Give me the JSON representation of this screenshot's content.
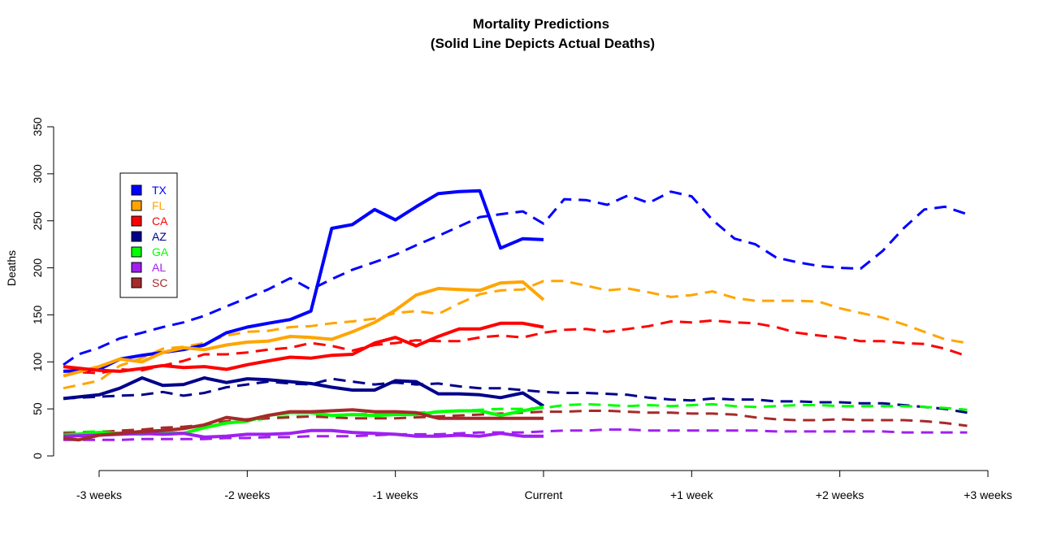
{
  "chart_data": {
    "type": "line",
    "title": "Mortality Predictions",
    "subtitle": "(Solid Line Depicts Actual Deaths)",
    "xlabel": "",
    "ylabel": "Deaths",
    "ylim": [
      0,
      350
    ],
    "yticks": [
      0,
      50,
      100,
      150,
      200,
      250,
      300,
      350
    ],
    "xlim": [
      -3.3,
      3.05
    ],
    "x_ticks": [
      {
        "value": -3,
        "label": "-3 weeks"
      },
      {
        "value": -2,
        "label": "-2 weeks"
      },
      {
        "value": -1,
        "label": "-1 weeks"
      },
      {
        "value": 0,
        "label": "Current"
      },
      {
        "value": 1,
        "label": "+1 week"
      },
      {
        "value": 2,
        "label": "+2 weeks"
      },
      {
        "value": 3,
        "label": "+3 weeks"
      }
    ],
    "grid": false,
    "legend_position": "top-left",
    "line_styles": {
      "actual": "solid",
      "predicted": "dashed"
    },
    "series": [
      {
        "name": "TX",
        "color": "#0000FF",
        "actual": {
          "x": [
            -3.3,
            -3.0,
            -2.86,
            -2.71,
            -2.57,
            -2.43,
            -2.29,
            -2.14,
            -2.0,
            -1.86,
            -1.71,
            -1.57,
            -1.43,
            -1.29,
            -1.14,
            -1.0,
            -0.86,
            -0.71,
            -0.57,
            -0.43,
            -0.29,
            -0.14,
            0
          ],
          "y": [
            90,
            92,
            103,
            107,
            110,
            113,
            118,
            131,
            137,
            141,
            145,
            154,
            242,
            246,
            262,
            251,
            265,
            279,
            281,
            282,
            221,
            231,
            230
          ]
        },
        "predicted": {
          "x": [
            -3.3,
            -3.14,
            -3.0,
            -2.86,
            -2.71,
            -2.57,
            -2.43,
            -2.29,
            -2.14,
            -2.0,
            -1.86,
            -1.71,
            -1.57,
            -1.43,
            -1.29,
            -1.14,
            -1.0,
            -0.86,
            -0.71,
            -0.57,
            -0.43,
            -0.29,
            -0.14,
            0,
            0.14,
            0.29,
            0.43,
            0.57,
            0.71,
            0.86,
            1.0,
            1.14,
            1.29,
            1.43,
            1.57,
            1.71,
            1.86,
            2.0,
            2.14,
            2.29,
            2.43,
            2.57,
            2.71,
            2.86
          ],
          "y": [
            97,
            108,
            115,
            125,
            131,
            137,
            142,
            149,
            159,
            168,
            177,
            189,
            177,
            188,
            198,
            206,
            214,
            224,
            234,
            244,
            254,
            257,
            260,
            247,
            273,
            272,
            267,
            277,
            269,
            281,
            276,
            251,
            231,
            225,
            211,
            206,
            202,
            200,
            199,
            218,
            242,
            262,
            265,
            257
          ]
        }
      },
      {
        "name": "FL",
        "color": "#FFA500",
        "actual": {
          "x": [
            -3.3,
            -3.0,
            -2.86,
            -2.71,
            -2.57,
            -2.43,
            -2.29,
            -2.14,
            -2.0,
            -1.86,
            -1.71,
            -1.57,
            -1.43,
            -1.29,
            -1.14,
            -1.0,
            -0.86,
            -0.71,
            -0.57,
            -0.43,
            -0.29,
            -0.14,
            0
          ],
          "y": [
            85,
            95,
            103,
            100,
            110,
            115,
            113,
            118,
            121,
            122,
            127,
            126,
            124,
            132,
            142,
            155,
            171,
            178,
            177,
            176,
            184,
            185,
            166
          ]
        },
        "predicted": {
          "x": [
            -3.3,
            -3.0,
            -2.86,
            -2.71,
            -2.57,
            -2.43,
            -2.29,
            -2.14,
            -2.0,
            -1.86,
            -1.71,
            -1.57,
            -1.43,
            -1.29,
            -1.14,
            -1.0,
            -0.86,
            -0.71,
            -0.57,
            -0.43,
            -0.29,
            -0.14,
            0,
            0.14,
            0.29,
            0.43,
            0.57,
            0.71,
            0.86,
            1.0,
            1.14,
            1.29,
            1.43,
            1.57,
            1.71,
            1.86,
            2.0,
            2.14,
            2.29,
            2.43,
            2.57,
            2.71,
            2.86
          ],
          "y": [
            72,
            80,
            96,
            104,
            114,
            116,
            120,
            128,
            132,
            133,
            137,
            138,
            141,
            143,
            146,
            152,
            154,
            151,
            162,
            172,
            176,
            177,
            186,
            186,
            181,
            176,
            178,
            174,
            169,
            171,
            175,
            168,
            165,
            165,
            165,
            164,
            157,
            152,
            147,
            140,
            132,
            124,
            120
          ]
        }
      },
      {
        "name": "CA",
        "color": "#FF0000",
        "actual": {
          "x": [
            -3.3,
            -3.0,
            -2.86,
            -2.71,
            -2.57,
            -2.43,
            -2.29,
            -2.14,
            -2.0,
            -1.86,
            -1.71,
            -1.57,
            -1.43,
            -1.29,
            -1.14,
            -1.0,
            -0.86,
            -0.71,
            -0.57,
            -0.43,
            -0.29,
            -0.14,
            0
          ],
          "y": [
            95,
            91,
            90,
            93,
            96,
            94,
            95,
            92,
            97,
            101,
            105,
            104,
            107,
            108,
            120,
            126,
            117,
            127,
            135,
            135,
            141,
            141,
            137
          ]
        },
        "predicted": {
          "x": [
            -3.3,
            -3.0,
            -2.86,
            -2.71,
            -2.57,
            -2.43,
            -2.29,
            -2.14,
            -2.0,
            -1.86,
            -1.71,
            -1.57,
            -1.43,
            -1.29,
            -1.14,
            -1.0,
            -0.86,
            -0.71,
            -0.57,
            -0.43,
            -0.29,
            -0.14,
            0,
            0.14,
            0.29,
            0.43,
            0.57,
            0.71,
            0.86,
            1.0,
            1.14,
            1.29,
            1.43,
            1.57,
            1.71,
            1.86,
            2.0,
            2.14,
            2.29,
            2.43,
            2.57,
            2.71,
            2.86
          ],
          "y": [
            90,
            88,
            92,
            91,
            96,
            101,
            108,
            108,
            110,
            113,
            115,
            120,
            117,
            112,
            118,
            120,
            123,
            122,
            122,
            126,
            128,
            126,
            131,
            134,
            135,
            132,
            135,
            138,
            143,
            142,
            144,
            142,
            141,
            137,
            131,
            128,
            126,
            122,
            122,
            120,
            119,
            114,
            106
          ]
        }
      },
      {
        "name": "AZ",
        "color": "#00008B",
        "actual": {
          "x": [
            -3.3,
            -3.0,
            -2.86,
            -2.71,
            -2.57,
            -2.43,
            -2.29,
            -2.14,
            -2.0,
            -1.86,
            -1.71,
            -1.57,
            -1.43,
            -1.29,
            -1.14,
            -1.0,
            -0.86,
            -0.71,
            -0.57,
            -0.43,
            -0.29,
            -0.14,
            0
          ],
          "y": [
            61,
            65,
            72,
            83,
            75,
            76,
            83,
            78,
            82,
            81,
            79,
            77,
            73,
            70,
            70,
            80,
            79,
            66,
            66,
            65,
            62,
            67,
            53
          ]
        },
        "predicted": {
          "x": [
            -3.3,
            -3.0,
            -2.86,
            -2.71,
            -2.57,
            -2.43,
            -2.29,
            -2.14,
            -2.0,
            -1.86,
            -1.71,
            -1.57,
            -1.43,
            -1.29,
            -1.14,
            -1.0,
            -0.86,
            -0.71,
            -0.57,
            -0.43,
            -0.29,
            -0.14,
            0,
            0.14,
            0.29,
            0.43,
            0.57,
            0.71,
            0.86,
            1.0,
            1.14,
            1.29,
            1.43,
            1.57,
            1.71,
            1.86,
            2.0,
            2.14,
            2.29,
            2.43,
            2.57,
            2.71,
            2.86
          ],
          "y": [
            61,
            63,
            64,
            65,
            68,
            64,
            67,
            73,
            76,
            79,
            77,
            76,
            82,
            79,
            76,
            78,
            76,
            77,
            74,
            72,
            72,
            70,
            68,
            67,
            67,
            66,
            65,
            62,
            60,
            59,
            61,
            60,
            60,
            58,
            58,
            57,
            57,
            56,
            56,
            54,
            52,
            50,
            46
          ]
        }
      },
      {
        "name": "GA",
        "color": "#00FF00",
        "actual": {
          "x": [
            -3.3,
            -3.0,
            -2.86,
            -2.71,
            -2.57,
            -2.43,
            -2.29,
            -2.14,
            -2.0,
            -1.86,
            -1.71,
            -1.57,
            -1.43,
            -1.29,
            -1.14,
            -1.0,
            -0.86,
            -0.71,
            -0.57,
            -0.43,
            -0.29,
            -0.14,
            0
          ],
          "y": [
            22,
            25,
            24,
            23,
            25,
            24,
            30,
            35,
            37,
            43,
            46,
            46,
            43,
            44,
            43,
            44,
            44,
            47,
            48,
            48,
            43,
            48,
            52
          ]
        },
        "predicted": {
          "x": [
            -3.3,
            -3.0,
            -2.86,
            -2.71,
            -2.57,
            -2.43,
            -2.29,
            -2.14,
            -2.0,
            -1.86,
            -1.71,
            -1.57,
            -1.43,
            -1.29,
            -1.14,
            -1.0,
            -0.86,
            -0.71,
            -0.57,
            -0.43,
            -0.29,
            -0.14,
            0,
            0.14,
            0.29,
            0.43,
            0.57,
            0.71,
            0.86,
            1.0,
            1.14,
            1.29,
            1.43,
            1.57,
            1.71,
            1.86,
            2.0,
            2.14,
            2.29,
            2.43,
            2.57,
            2.71,
            2.86
          ],
          "y": [
            25,
            26,
            26,
            27,
            27,
            29,
            33,
            35,
            37,
            40,
            42,
            42,
            43,
            44,
            45,
            46,
            46,
            47,
            48,
            49,
            50,
            50,
            51,
            54,
            55,
            54,
            53,
            54,
            53,
            54,
            55,
            53,
            52,
            53,
            54,
            54,
            53,
            53,
            53,
            53,
            52,
            51,
            49
          ]
        }
      },
      {
        "name": "AL",
        "color": "#A020F0",
        "actual": {
          "x": [
            -3.3,
            -3.0,
            -2.86,
            -2.71,
            -2.57,
            -2.43,
            -2.29,
            -2.14,
            -2.0,
            -1.86,
            -1.71,
            -1.57,
            -1.43,
            -1.29,
            -1.14,
            -1.0,
            -0.86,
            -0.71,
            -0.57,
            -0.43,
            -0.29,
            -0.14,
            0
          ],
          "y": [
            21,
            22,
            23,
            24,
            23,
            24,
            20,
            21,
            23,
            23,
            24,
            27,
            27,
            25,
            24,
            23,
            21,
            21,
            22,
            21,
            24,
            21,
            21
          ]
        },
        "predicted": {
          "x": [
            -3.3,
            -3.0,
            -2.86,
            -2.71,
            -2.57,
            -2.43,
            -2.29,
            -2.14,
            -2.0,
            -1.86,
            -1.71,
            -1.57,
            -1.43,
            -1.29,
            -1.14,
            -1.0,
            -0.86,
            -0.71,
            -0.57,
            -0.43,
            -0.29,
            -0.14,
            0,
            0.14,
            0.29,
            0.43,
            0.57,
            0.71,
            0.86,
            1.0,
            1.14,
            1.29,
            1.43,
            1.57,
            1.71,
            1.86,
            2.0,
            2.14,
            2.29,
            2.43,
            2.57,
            2.71,
            2.86
          ],
          "y": [
            17,
            17,
            17,
            18,
            18,
            18,
            18,
            19,
            19,
            20,
            20,
            21,
            21,
            21,
            22,
            23,
            23,
            23,
            24,
            25,
            25,
            25,
            26,
            27,
            27,
            28,
            28,
            27,
            27,
            27,
            27,
            27,
            27,
            26,
            26,
            26,
            26,
            26,
            26,
            25,
            25,
            25,
            25
          ]
        }
      },
      {
        "name": "SC",
        "color": "#A52A2A",
        "actual": {
          "x": [
            -3.3,
            -3.14,
            -3.0,
            -2.86,
            -2.71,
            -2.57,
            -2.43,
            -2.29,
            -2.14,
            -2.0,
            -1.86,
            -1.71,
            -1.57,
            -1.43,
            -1.29,
            -1.14,
            -1.0,
            -0.86,
            -0.71,
            -0.57,
            -0.43,
            -0.29,
            -0.14,
            0
          ],
          "y": [
            19,
            17,
            22,
            24,
            26,
            27,
            29,
            33,
            41,
            38,
            43,
            47,
            47,
            48,
            49,
            47,
            47,
            46,
            40,
            40,
            40,
            40,
            40,
            40
          ]
        },
        "predicted": {
          "x": [
            -3.3,
            -3.0,
            -2.86,
            -2.71,
            -2.57,
            -2.43,
            -2.29,
            -2.14,
            -2.0,
            -1.86,
            -1.71,
            -1.57,
            -1.43,
            -1.29,
            -1.14,
            -1.0,
            -0.86,
            -0.71,
            -0.57,
            -0.43,
            -0.29,
            -0.14,
            0,
            0.14,
            0.29,
            0.43,
            0.57,
            0.71,
            0.86,
            1.0,
            1.14,
            1.29,
            1.43,
            1.57,
            1.71,
            1.86,
            2.0,
            2.14,
            2.29,
            2.43,
            2.57,
            2.71,
            2.86
          ],
          "y": [
            24,
            25,
            27,
            28,
            30,
            31,
            33,
            37,
            39,
            40,
            41,
            42,
            41,
            40,
            40,
            40,
            41,
            42,
            43,
            44,
            45,
            46,
            47,
            47,
            48,
            48,
            47,
            46,
            46,
            45,
            45,
            44,
            41,
            39,
            38,
            38,
            39,
            38,
            38,
            38,
            37,
            35,
            32
          ]
        }
      }
    ]
  }
}
